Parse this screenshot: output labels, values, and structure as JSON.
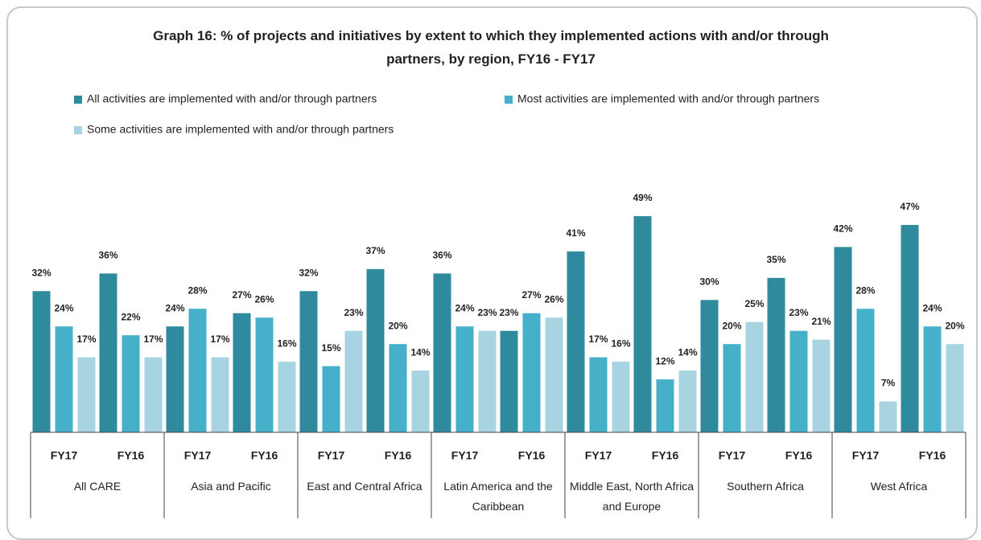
{
  "chart_data": {
    "type": "bar",
    "title": "Graph 16:  % of projects and initiatives by extent to which they implemented actions with and/or through partners, by region, FY16 - FY17",
    "categories": [
      "FY17",
      "FY16",
      "FY17",
      "FY16",
      "FY17",
      "FY16",
      "FY17",
      "FY16",
      "FY17",
      "FY16",
      "FY17",
      "FY16",
      "FY17",
      "FY16"
    ],
    "regions": [
      "All CARE",
      "Asia and Pacific",
      "East and Central Africa",
      "Latin America and the Caribbean",
      "Middle East, North Africa and Europe",
      "Southern Africa",
      "West Africa"
    ],
    "ylim": [
      0,
      55
    ],
    "legend": "top",
    "series": [
      {
        "name": "All activities are implemented with and/or through partners",
        "color": "#2f8a9d",
        "values": [
          32,
          36,
          24,
          27,
          32,
          37,
          36,
          23,
          41,
          49,
          30,
          35,
          42,
          47
        ],
        "value_labels": [
          "32%",
          "36%",
          "24%",
          "27%",
          "32%",
          "37%",
          "36%",
          "23%",
          "41%",
          "49%",
          "30%",
          "35%",
          "42%",
          "47%"
        ]
      },
      {
        "name": "Most activities are implemented with and/or through partners",
        "color": "#46afca",
        "values": [
          24,
          22,
          28,
          26,
          15,
          20,
          24,
          27,
          17,
          12,
          20,
          23,
          28,
          24
        ],
        "value_labels": [
          "24%",
          "22%",
          "28%",
          "26%",
          "15%",
          "20%",
          "24%",
          "27%",
          "17%",
          "12%",
          "20%",
          "23%",
          "28%",
          "24%"
        ]
      },
      {
        "name": "Some activities are implemented with and/or through partners",
        "color": "#a8d3e1",
        "values": [
          17,
          17,
          17,
          16,
          23,
          14,
          23,
          26,
          16,
          14,
          25,
          21,
          7,
          20
        ],
        "value_labels": [
          "17%",
          "17%",
          "17%",
          "16%",
          "23%",
          "14%",
          "23%",
          "26%",
          "16%",
          "14%",
          "25%",
          "21%",
          "7%",
          "20%"
        ]
      }
    ]
  }
}
